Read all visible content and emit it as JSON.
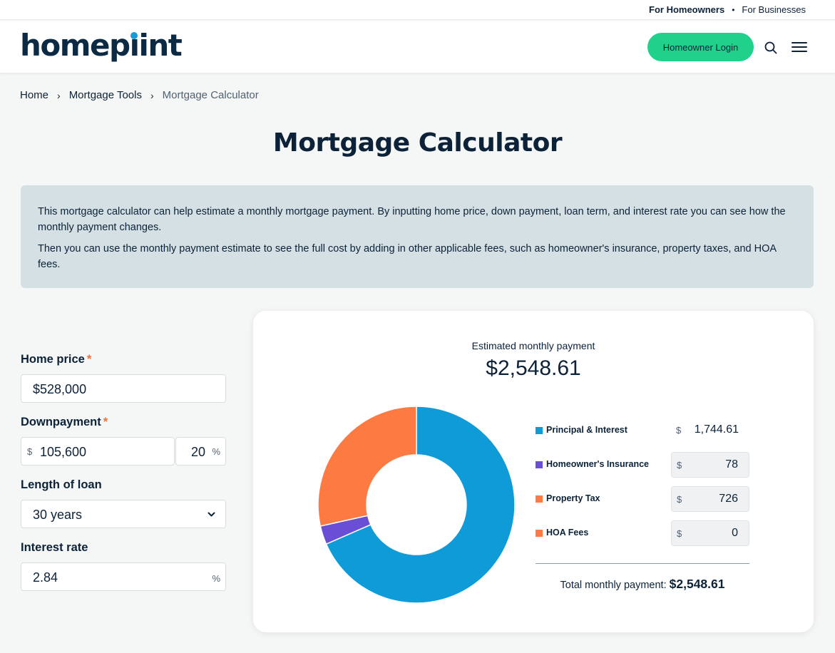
{
  "topbar": {
    "homeowners": "For Homeowners",
    "dot": "•",
    "businesses": "For Businesses"
  },
  "header": {
    "logo": {
      "pre": "homep",
      "i": "ı",
      "post": "int"
    },
    "login_label": "Homeowner Login",
    "search_icon": "search-icon",
    "menu_icon": "hamburger-menu-icon"
  },
  "breadcrumb": {
    "items": [
      "Home",
      "Mortgage Tools",
      "Mortgage Calculator"
    ],
    "separator": "›"
  },
  "page": {
    "title": "Mortgage Calculator"
  },
  "intro": {
    "p1": "This mortgage calculator can help estimate a monthly mortgage payment. By inputting home price, down payment, loan term, and interest rate you can see how the monthly payment changes.",
    "p2": "Then you can use the monthly payment estimate to see the full cost by adding in other applicable fees, such as homeowner's insurance, property taxes, and HOA fees."
  },
  "form": {
    "required_mark": "*",
    "home_price": {
      "label": "Home price",
      "value": "$528,000"
    },
    "downpayment": {
      "label": "Downpayment",
      "currency": "$",
      "value": "105,600",
      "percent": "20",
      "percent_sign": "%"
    },
    "loan_length": {
      "label": "Length of loan",
      "value": "30 years"
    },
    "interest_rate": {
      "label": "Interest rate",
      "value": "2.84",
      "percent_sign": "%"
    }
  },
  "result": {
    "est_label": "Estimated monthly payment",
    "est_value": "$2,548.61",
    "currency": "$",
    "items": [
      {
        "name": "Principal & Interest",
        "value": "1,744.61",
        "amount": 1744.61,
        "color": "#0e9bd8"
      },
      {
        "name": "Homeowner's Insurance",
        "value": "78",
        "amount": 78,
        "color": "#6a4fd6"
      },
      {
        "name": "Property Tax",
        "value": "726",
        "amount": 726,
        "color": "#fe7a43"
      },
      {
        "name": "HOA Fees",
        "value": "0",
        "amount": 0,
        "color": "#fe7a43"
      }
    ],
    "total_label": "Total monthly payment:",
    "total_value": "$2,548.61"
  }
}
